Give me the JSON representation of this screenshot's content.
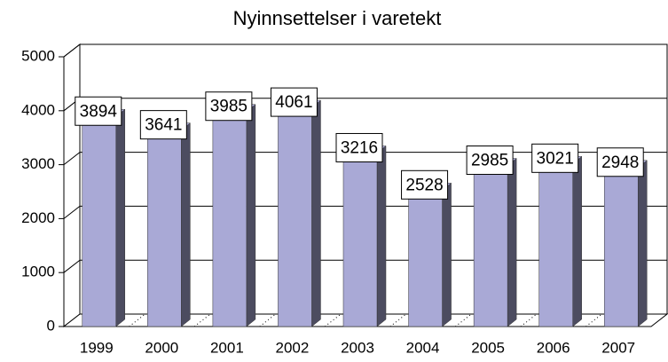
{
  "chart_data": {
    "type": "bar",
    "title": "Nyinnsettelser i varetekt",
    "categories": [
      "1999",
      "2000",
      "2001",
      "2002",
      "2003",
      "2004",
      "2005",
      "2006",
      "2007"
    ],
    "values": [
      3894,
      3641,
      3985,
      4061,
      3216,
      2528,
      2985,
      3021,
      2948
    ],
    "color": "#a9a9d6",
    "ylim": [
      0,
      5000
    ],
    "yticks": [
      0,
      1000,
      2000,
      3000,
      4000,
      5000
    ],
    "grid": true
  }
}
